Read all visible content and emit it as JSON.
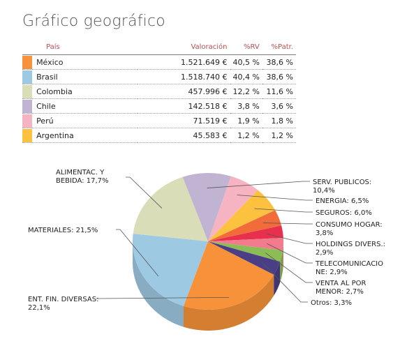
{
  "title": "Gráfico geográfico",
  "table": {
    "headers": {
      "country": "País",
      "valuation": "Valoración",
      "rv": "%RV",
      "patr": "%Patr."
    },
    "rows": [
      {
        "color": "#f7923a",
        "country": "México",
        "valuation": "1.521.649 €",
        "rv": "40,5 %",
        "patr": "38,6 %"
      },
      {
        "color": "#9ec9e2",
        "country": "Brasil",
        "valuation": "1.518.740 €",
        "rv": "40,4 %",
        "patr": "38,6 %"
      },
      {
        "color": "#d9ddb8",
        "country": "Colombia",
        "valuation": "457.996 €",
        "rv": "12,2 %",
        "patr": "11,6 %"
      },
      {
        "color": "#c0b4d2",
        "country": "Chile",
        "valuation": "142.518 €",
        "rv": "3,8 %",
        "patr": "3,6 %"
      },
      {
        "color": "#f6b3c2",
        "country": "Perú",
        "valuation": "71.519 €",
        "rv": "1,9 %",
        "patr": "1,8 %"
      },
      {
        "color": "#fbc13f",
        "country": "Argentina",
        "valuation": "45.583 €",
        "rv": "1,2 %",
        "patr": "1,2 %"
      }
    ]
  },
  "chart_data": {
    "type": "pie",
    "three_d": true,
    "slices": [
      {
        "label_lines": [
          "ENT. FIN. DIVERSAS:",
          "22,1%"
        ],
        "value": 22.1,
        "color": "#f7923a"
      },
      {
        "label_lines": [
          "MATERIALES: 21,5%"
        ],
        "value": 21.5,
        "color": "#9ec9e2"
      },
      {
        "label_lines": [
          "ALIMENTAC. Y",
          "BEBIDA: 17,7%"
        ],
        "value": 17.7,
        "color": "#d9ddb8"
      },
      {
        "label_lines": [
          "SERV. PUBLICOS:",
          "10,4%"
        ],
        "value": 10.4,
        "color": "#c0b4d2"
      },
      {
        "label_lines": [
          "ENERGIA: 6,5%"
        ],
        "value": 6.5,
        "color": "#f6b3c2"
      },
      {
        "label_lines": [
          "SEGUROS: 6,0%"
        ],
        "value": 6.0,
        "color": "#fbc13f"
      },
      {
        "label_lines": [
          "CONSUMO HOGAR:",
          "3,8%"
        ],
        "value": 3.8,
        "color": "#f26b3a"
      },
      {
        "label_lines": [
          "HOLDINGS DIVERS.:",
          "2,9%"
        ],
        "value": 2.9,
        "color": "#e8304e"
      },
      {
        "label_lines": [
          "TELECOMUNICACIO",
          "NE: 2,9%"
        ],
        "value": 2.9,
        "color": "#f27c8e"
      },
      {
        "label_lines": [
          "VENTA AL POR",
          "MENOR: 2,7%"
        ],
        "value": 2.7,
        "color": "#8cbc56"
      },
      {
        "label_lines": [
          "Otros: 3,3%"
        ],
        "value": 3.3,
        "color": "#4a3f86"
      }
    ]
  }
}
